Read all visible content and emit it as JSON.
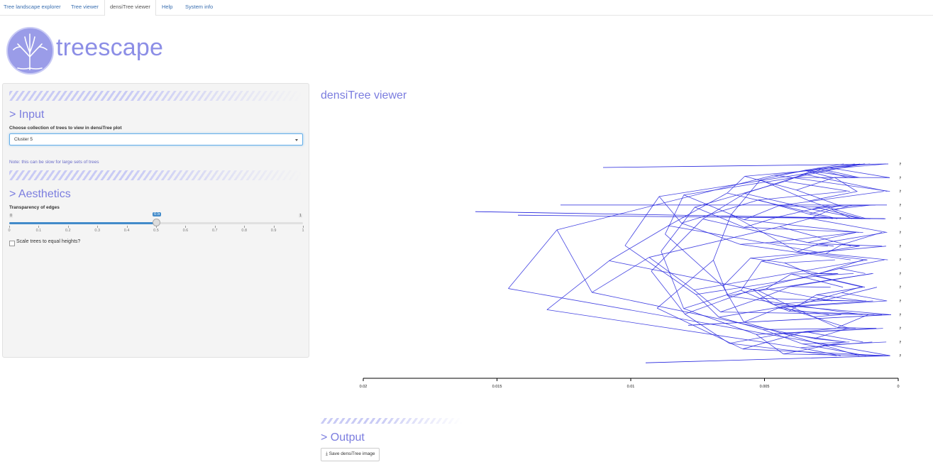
{
  "nav": {
    "tabs": [
      "Tree landscape explorer",
      "Tree viewer",
      "densiTree viewer",
      "Help",
      "System info"
    ],
    "active_tab": "densiTree viewer"
  },
  "logo": {
    "text": "treescape"
  },
  "sidebar": {
    "input": {
      "title": "> Input",
      "select_label": "Choose collection of trees to view in densiTree plot",
      "select_value": "Cluster 5",
      "note": "Note: this can be slow for large sets of trees"
    },
    "aesthetics": {
      "title": "> Aesthetics",
      "slider_label": "Transparency of edges",
      "slider_min": "0",
      "slider_max": "1",
      "slider_value": "0.5",
      "slider_ticks": [
        "0",
        "0.1",
        "0.2",
        "0.3",
        "0.4",
        "0.5",
        "0.6",
        "0.7",
        "0.8",
        "0.9",
        "1"
      ],
      "checkbox_label": "Scale trees to equal heights?"
    }
  },
  "main": {
    "title": "densiTree viewer",
    "output_title": "> Output",
    "save_button": "Save densiTree image"
  },
  "chart_data": {
    "type": "densitree",
    "tips": [
      "No305",
      "No306",
      "No304",
      "No0913S",
      "No1114S",
      "No1007S",
      "No1208S",
      "No0909S",
      "No0912S",
      "No1103S",
      "No0906S",
      "No1202S",
      "No0910S",
      "No0908S",
      "No1206S"
    ],
    "x_ticks": [
      "0.02",
      "0.015",
      "0.01",
      "0.005",
      "0"
    ],
    "xlim": [
      0.02,
      0
    ]
  },
  "colors": {
    "accent": "#7b7ddf",
    "edges": "#2222dd",
    "slider": "#428bca"
  }
}
